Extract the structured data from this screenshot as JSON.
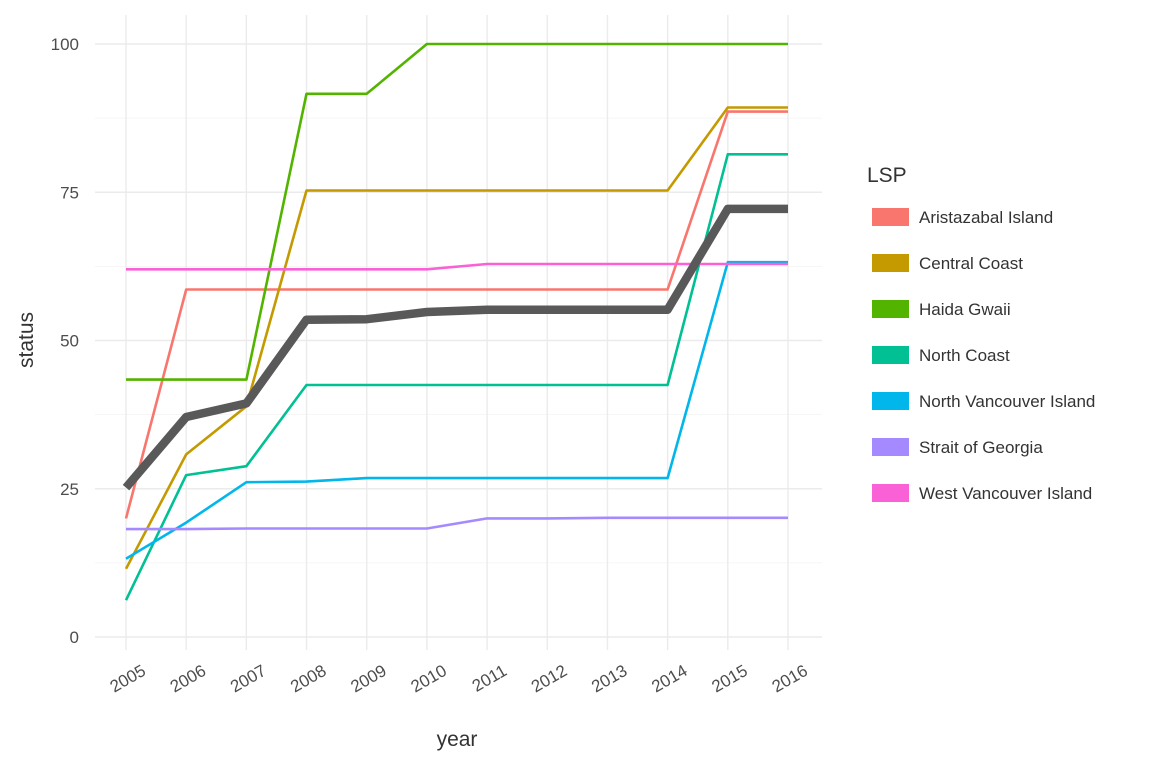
{
  "chart_data": {
    "type": "line",
    "title": "",
    "xlabel": "year",
    "ylabel": "status",
    "x": [
      2005,
      2006,
      2007,
      2008,
      2009,
      2010,
      2011,
      2012,
      2013,
      2014,
      2015,
      2016
    ],
    "x_tick_labels": [
      "2005",
      "2006",
      "2007",
      "2008",
      "2009",
      "2010",
      "2011",
      "2012",
      "2013",
      "2014",
      "2015",
      "2016"
    ],
    "y_ticks": [
      0,
      25,
      50,
      75,
      100
    ],
    "ylim": [
      0,
      100
    ],
    "grid": true,
    "legend": {
      "title": "LSP",
      "position": "right"
    },
    "series": [
      {
        "name": "Aristazabal Island",
        "color": "#F8766D",
        "values": [
          20,
          58.6,
          58.6,
          58.6,
          58.6,
          58.6,
          58.6,
          58.6,
          58.6,
          58.6,
          88.6,
          88.6
        ]
      },
      {
        "name": "Central Coast",
        "color": "#C49A00",
        "values": [
          11.5,
          30.8,
          38.9,
          75.3,
          75.3,
          75.3,
          75.3,
          75.3,
          75.3,
          75.3,
          89.3,
          89.3
        ]
      },
      {
        "name": "Haida Gwaii",
        "color": "#53B400",
        "values": [
          43.4,
          43.4,
          43.4,
          91.6,
          91.6,
          100,
          100,
          100,
          100,
          100,
          100,
          100
        ]
      },
      {
        "name": "North Coast",
        "color": "#00C094",
        "values": [
          6.2,
          27.3,
          28.8,
          42.5,
          42.5,
          42.5,
          42.5,
          42.5,
          42.5,
          42.5,
          81.4,
          81.4
        ]
      },
      {
        "name": "North Vancouver Island",
        "color": "#00B6EB",
        "values": [
          13.2,
          19.3,
          26.1,
          26.2,
          26.8,
          26.8,
          26.8,
          26.8,
          26.8,
          26.8,
          63.2,
          63.2
        ]
      },
      {
        "name": "Strait of Georgia",
        "color": "#A58AFF",
        "values": [
          18.2,
          18.2,
          18.3,
          18.3,
          18.3,
          18.3,
          20.0,
          20.0,
          20.1,
          20.1,
          20.1,
          20.1
        ]
      },
      {
        "name": "West Vancouver Island",
        "color": "#FB61D7",
        "values": [
          62.0,
          62.0,
          62.0,
          62.0,
          62.0,
          62.0,
          62.9,
          62.9,
          62.9,
          62.9,
          62.9,
          62.9
        ]
      }
    ],
    "overall": {
      "color": "#595959",
      "values": [
        25.2,
        37.1,
        39.4,
        53.5,
        53.6,
        54.8,
        55.2,
        55.2,
        55.2,
        55.2,
        72.2,
        72.2
      ]
    }
  }
}
